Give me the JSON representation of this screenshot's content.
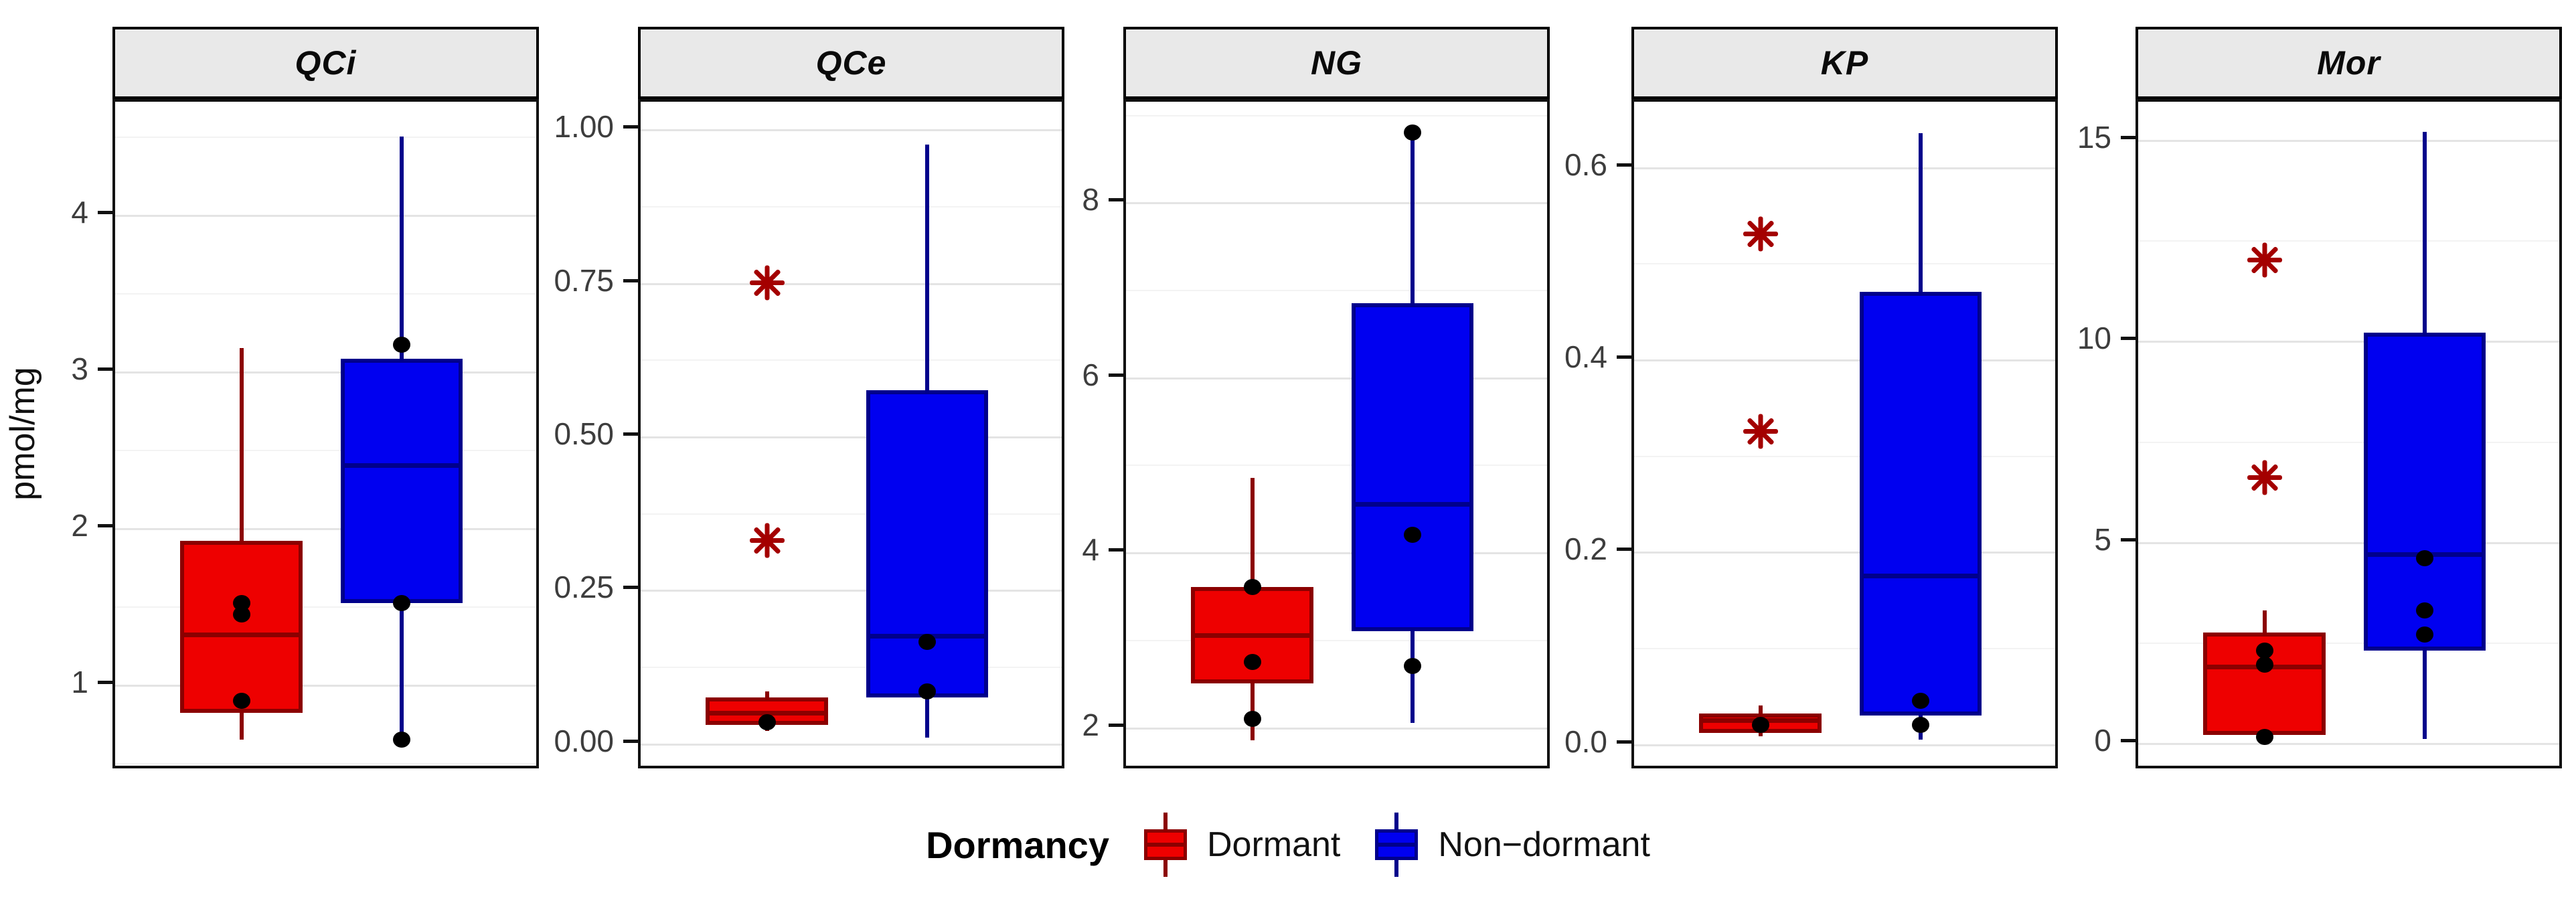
{
  "chart_data": {
    "type": "boxplot",
    "faceted": true,
    "ylabel": "pmol/mg",
    "grid": "horizontal-light",
    "legend": {
      "title": "Dormancy",
      "position": "bottom",
      "items": [
        "Dormant",
        "Non−dormant"
      ]
    },
    "colors": {
      "dormant_fill": "#ee0000",
      "dormant_stroke": "#8b0000",
      "nondormant_fill": "#0000f0",
      "nondormant_stroke": "#00008b",
      "point": "#000000",
      "outlier": "#a40000",
      "strip_bg": "#e9e9e9",
      "panel_border": "#111111"
    },
    "facets": [
      {
        "title": "QCi",
        "ylim": [
          0.45,
          4.72
        ],
        "yticks": [
          1,
          2,
          3,
          4
        ],
        "ytick_labels": [
          "1",
          "2",
          "3",
          "4"
        ],
        "series": [
          {
            "group": "Dormant",
            "whisker_low": 0.65,
            "q1": 0.82,
            "median": 1.32,
            "q3": 1.92,
            "whisker_high": 3.15,
            "points": [
              1.52,
              1.45,
              0.9
            ],
            "outliers": []
          },
          {
            "group": "Non−dormant",
            "whisker_low": 0.65,
            "q1": 1.52,
            "median": 2.4,
            "q3": 3.08,
            "whisker_high": 4.5,
            "points": [
              3.17,
              1.52,
              0.65
            ],
            "outliers": []
          }
        ]
      },
      {
        "title": "QCe",
        "ylim": [
          -0.045,
          1.045
        ],
        "yticks": [
          0,
          0.25,
          0.5,
          0.75,
          1.0
        ],
        "ytick_labels": [
          "0.00",
          "0.25",
          "0.50",
          "0.75",
          "1.00"
        ],
        "series": [
          {
            "group": "Dormant",
            "whisker_low": 0.02,
            "q1": 0.03,
            "median": 0.05,
            "q3": 0.075,
            "whisker_high": 0.085,
            "points": [
              0.035
            ],
            "outliers": [
              0.75,
              0.33
            ]
          },
          {
            "group": "Non−dormant",
            "whisker_low": 0.01,
            "q1": 0.075,
            "median": 0.175,
            "q3": 0.575,
            "whisker_high": 0.975,
            "points": [
              0.165,
              0.085
            ],
            "outliers": []
          }
        ]
      },
      {
        "title": "NG",
        "ylim": [
          1.5,
          9.15
        ],
        "yticks": [
          2,
          4,
          6,
          8
        ],
        "ytick_labels": [
          "2",
          "4",
          "6",
          "8"
        ],
        "series": [
          {
            "group": "Dormant",
            "whisker_low": 1.85,
            "q1": 2.5,
            "median": 3.05,
            "q3": 3.6,
            "whisker_high": 4.85,
            "points": [
              3.6,
              2.75,
              2.1
            ],
            "outliers": []
          },
          {
            "group": "Non−dormant",
            "whisker_low": 2.05,
            "q1": 3.1,
            "median": 4.55,
            "q3": 6.85,
            "whisker_high": 8.75,
            "points": [
              8.8,
              4.2,
              2.7
            ],
            "outliers": []
          }
        ]
      },
      {
        "title": "KP",
        "ylim": [
          -0.028,
          0.668
        ],
        "yticks": [
          0,
          0.2,
          0.4,
          0.6
        ],
        "ytick_labels": [
          "0.0",
          "0.2",
          "0.4",
          "0.6"
        ],
        "series": [
          {
            "group": "Dormant",
            "whisker_low": 0.008,
            "q1": 0.012,
            "median": 0.025,
            "q3": 0.032,
            "whisker_high": 0.04,
            "points": [
              0.02
            ],
            "outliers": [
              0.53,
              0.325
            ]
          },
          {
            "group": "Non−dormant",
            "whisker_low": 0.005,
            "q1": 0.03,
            "median": 0.175,
            "q3": 0.47,
            "whisker_high": 0.635,
            "points": [
              0.045,
              0.02
            ],
            "outliers": []
          }
        ]
      },
      {
        "title": "Mor",
        "ylim": [
          -0.7,
          15.95
        ],
        "yticks": [
          0,
          5,
          10,
          15
        ],
        "ytick_labels": [
          "0",
          "5",
          "10",
          "15"
        ],
        "series": [
          {
            "group": "Dormant",
            "whisker_low": 0.1,
            "q1": 0.2,
            "median": 1.9,
            "q3": 2.75,
            "whisker_high": 3.3,
            "points": [
              2.3,
              1.95,
              0.15
            ],
            "outliers": [
              12.0,
              6.6
            ]
          },
          {
            "group": "Non−dormant",
            "whisker_low": 0.1,
            "q1": 2.3,
            "median": 4.7,
            "q3": 10.2,
            "whisker_high": 15.2,
            "points": [
              4.6,
              3.3,
              2.7
            ],
            "outliers": []
          }
        ]
      }
    ]
  }
}
